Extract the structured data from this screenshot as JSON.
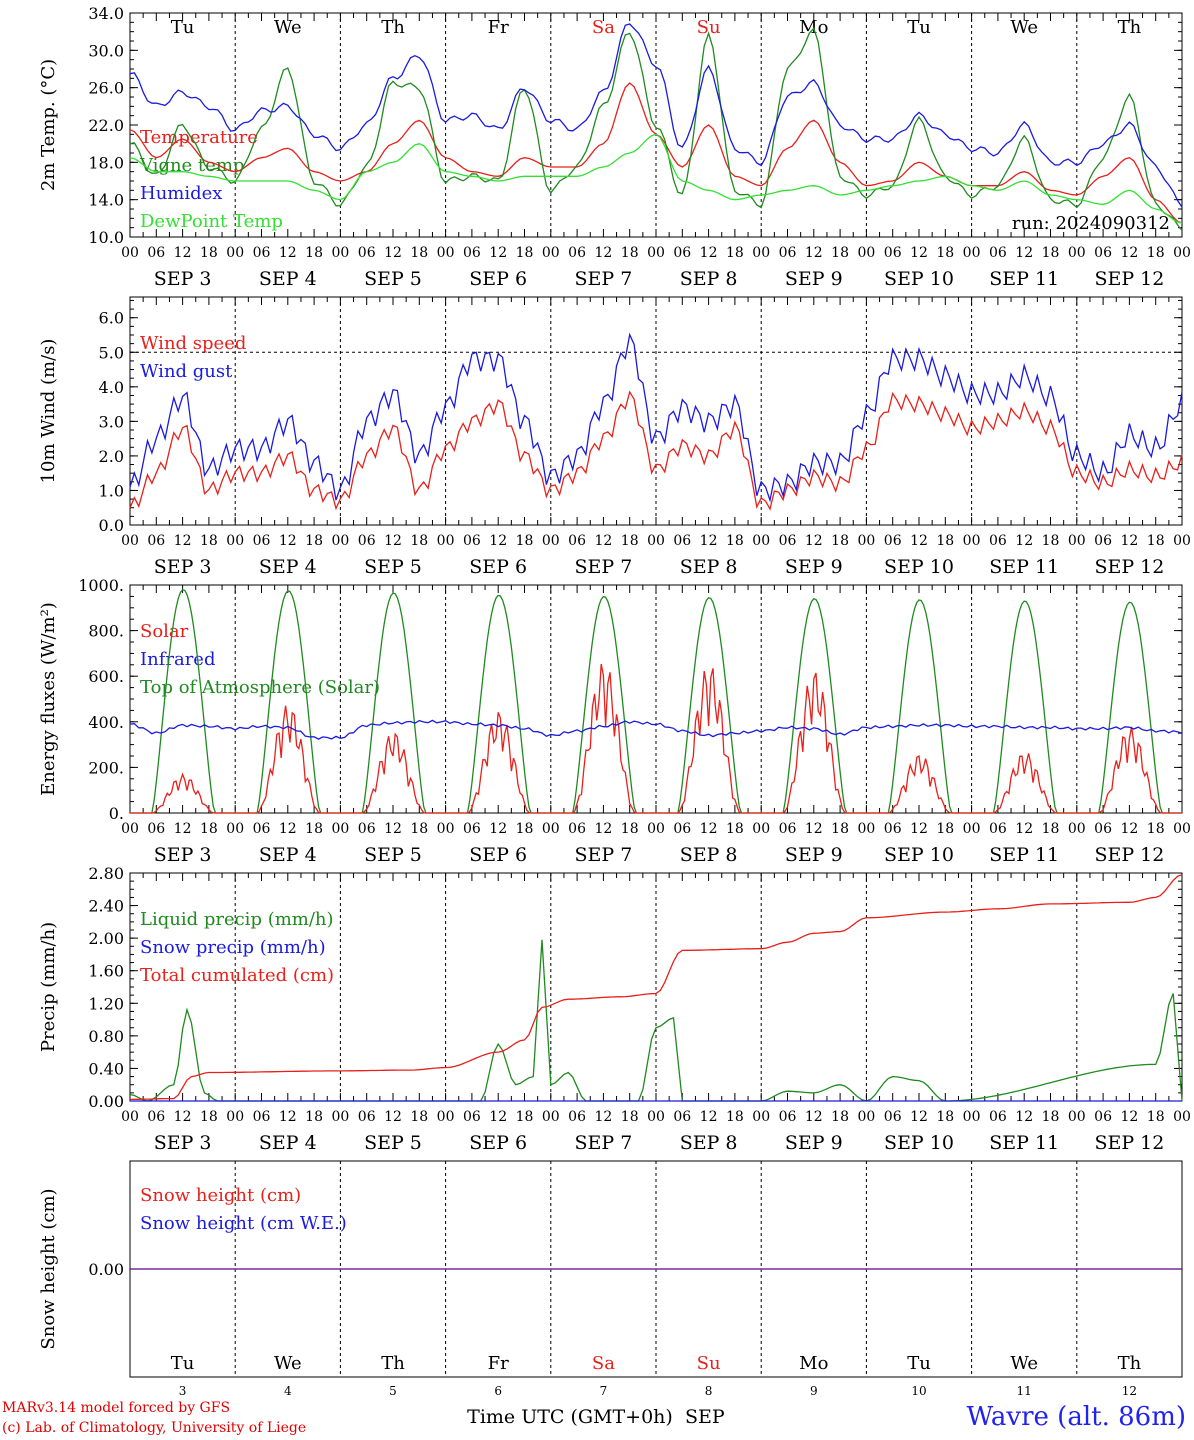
{
  "station": "Wavre (alt. 86m)",
  "credits": [
    "MARv3.14 model forced by GFS",
    "(c) Lab. of Climatology, University of Liege"
  ],
  "run_label": "run: 2024090312",
  "days": [
    {
      "dow": "Tu",
      "date": "SEP  3",
      "num": "3",
      "weekend": false
    },
    {
      "dow": "We",
      "date": "SEP  4",
      "num": "4",
      "weekend": false
    },
    {
      "dow": "Th",
      "date": "SEP  5",
      "num": "5",
      "weekend": false
    },
    {
      "dow": "Fr",
      "date": "SEP  6",
      "num": "6",
      "weekend": false
    },
    {
      "dow": "Sa",
      "date": "SEP  7",
      "num": "7",
      "weekend": true
    },
    {
      "dow": "Su",
      "date": "SEP  8",
      "num": "8",
      "weekend": true
    },
    {
      "dow": "Mo",
      "date": "SEP  9",
      "num": "9",
      "weekend": false
    },
    {
      "dow": "Tu",
      "date": "SEP 10",
      "num": "10",
      "weekend": false
    },
    {
      "dow": "We",
      "date": "SEP 11",
      "num": "11",
      "weekend": false
    },
    {
      "dow": "Th",
      "date": "SEP 12",
      "num": "12",
      "weekend": false
    }
  ],
  "hour_ticks": [
    "00",
    "06",
    "12",
    "18"
  ],
  "end_tick": "00",
  "xlabel": "Time UTC (GMT+0h)",
  "xlabel_month": "SEP",
  "colors": {
    "red": "#e8201a",
    "green": "#1f8a1f",
    "blue": "#1a1ae0",
    "lightgreen": "#33e033",
    "weekend": "#e8201a",
    "axis": "#000000"
  },
  "chart_data": [
    {
      "type": "line",
      "ylabel": "2m Temp. (°C)",
      "ylim": [
        10,
        34
      ],
      "yticks": [
        "10.0",
        "14.0",
        "18.0",
        "22.0",
        "26.0",
        "30.0",
        "34.0"
      ],
      "x_hours": [
        0,
        6,
        12,
        18,
        24,
        30,
        36,
        42,
        48,
        54,
        60,
        66,
        72,
        78,
        84,
        90,
        96,
        102,
        108,
        114,
        120,
        126,
        132,
        138,
        144,
        150,
        156,
        162,
        168,
        174,
        180,
        186,
        192,
        198,
        204,
        210,
        216,
        222,
        228,
        234,
        240
      ],
      "series": [
        {
          "name": "Temperature",
          "color": "#e8201a",
          "values": [
            21.5,
            18.5,
            20.5,
            18.0,
            17.0,
            18.5,
            19.5,
            17.0,
            16.0,
            17.0,
            20.0,
            22.5,
            18.5,
            17.0,
            16.5,
            18.5,
            17.5,
            17.5,
            20.0,
            26.5,
            21.0,
            17.5,
            22.0,
            16.5,
            15.5,
            19.5,
            22.5,
            18.0,
            15.5,
            16.0,
            18.0,
            16.5,
            15.5,
            15.5,
            17.0,
            15.0,
            14.5,
            16.5,
            18.5,
            14.0,
            11.5
          ]
        },
        {
          "name": "Vigne temp",
          "color": "#1f8a1f",
          "values": [
            20.0,
            16.5,
            22.0,
            17.5,
            16.0,
            21.5,
            28.0,
            16.0,
            13.5,
            17.5,
            26.5,
            26.0,
            16.0,
            16.5,
            16.0,
            26.0,
            15.0,
            17.5,
            24.0,
            32.0,
            22.0,
            14.5,
            31.5,
            15.0,
            13.5,
            28.0,
            32.0,
            16.5,
            14.5,
            15.5,
            22.5,
            16.5,
            14.5,
            15.5,
            20.5,
            14.0,
            13.5,
            18.5,
            25.0,
            13.5,
            11.0
          ]
        },
        {
          "name": "Humidex",
          "color": "#1a1ae0",
          "values": [
            27.5,
            24.0,
            25.5,
            24.0,
            21.5,
            23.5,
            24.0,
            21.0,
            19.5,
            22.0,
            27.0,
            29.5,
            22.5,
            23.0,
            21.5,
            26.0,
            22.5,
            21.5,
            25.5,
            33.0,
            28.5,
            19.5,
            28.0,
            19.5,
            18.0,
            25.0,
            26.5,
            22.0,
            20.5,
            20.5,
            23.0,
            21.0,
            19.5,
            19.0,
            22.0,
            18.0,
            18.0,
            20.0,
            22.0,
            17.5,
            13.5
          ]
        },
        {
          "name": "DewPoint Temp",
          "color": "#33e033",
          "values": [
            18.5,
            17.0,
            17.0,
            16.5,
            16.0,
            16.0,
            16.0,
            15.0,
            14.0,
            17.0,
            18.0,
            20.0,
            17.0,
            16.5,
            16.0,
            16.5,
            16.5,
            16.5,
            17.5,
            19.0,
            21.0,
            16.0,
            15.0,
            14.0,
            14.5,
            15.0,
            15.5,
            14.5,
            15.0,
            15.5,
            16.0,
            16.5,
            15.5,
            15.0,
            16.0,
            14.5,
            14.0,
            13.5,
            15.0,
            13.0,
            11.5
          ]
        }
      ]
    },
    {
      "type": "line",
      "ylabel": "10m Wind (m/s)",
      "ylim": [
        0,
        6.6
      ],
      "yticks": [
        "0.0",
        "1.0",
        "2.0",
        "3.0",
        "4.0",
        "5.0",
        "6.0"
      ],
      "ref_line": 5.0,
      "x_hours": [
        0,
        6,
        12,
        18,
        24,
        30,
        36,
        42,
        48,
        54,
        60,
        66,
        72,
        78,
        84,
        90,
        96,
        102,
        108,
        114,
        120,
        126,
        132,
        138,
        144,
        150,
        156,
        162,
        168,
        174,
        180,
        186,
        192,
        198,
        204,
        210,
        216,
        222,
        228,
        234,
        240
      ],
      "series": [
        {
          "name": "Wind speed",
          "color": "#e8201a",
          "values": [
            0.5,
            1.5,
            2.8,
            1.0,
            1.5,
            1.5,
            2.0,
            1.0,
            0.7,
            2.0,
            2.8,
            1.0,
            2.2,
            3.0,
            3.5,
            2.0,
            1.0,
            1.5,
            2.5,
            3.7,
            1.6,
            2.3,
            2.0,
            2.8,
            0.6,
            1.0,
            1.4,
            1.2,
            2.2,
            3.6,
            3.5,
            3.2,
            2.8,
            3.0,
            3.3,
            2.8,
            1.5,
            1.2,
            1.6,
            1.4,
            1.8
          ]
        },
        {
          "name": "Wind gust",
          "color": "#1a1ae0",
          "values": [
            1.1,
            2.5,
            3.7,
            1.6,
            2.2,
            2.2,
            3.0,
            1.8,
            1.0,
            3.0,
            3.8,
            2.0,
            3.4,
            4.8,
            4.8,
            3.0,
            1.4,
            2.0,
            3.5,
            5.3,
            2.5,
            3.4,
            3.0,
            3.5,
            1.0,
            1.2,
            1.8,
            1.8,
            3.2,
            4.8,
            4.8,
            4.3,
            3.8,
            3.8,
            4.3,
            3.7,
            2.0,
            1.5,
            2.6,
            2.2,
            3.5
          ]
        }
      ]
    },
    {
      "type": "line",
      "ylabel": "Energy fluxes (W/m²)",
      "ylim": [
        0,
        1000
      ],
      "yticks": [
        "0.",
        "200.",
        "400.",
        "600.",
        "800.",
        "1000."
      ],
      "series": [
        {
          "name": "Solar",
          "color": "#e8201a",
          "daily_peak": [
            170,
            480,
            360,
            450,
            670,
            660,
            630,
            260,
            270,
            380
          ]
        },
        {
          "name": "Infrared",
          "color": "#1a1ae0",
          "values": [
            390,
            350,
            385,
            380,
            370,
            380,
            375,
            330,
            330,
            385,
            395,
            400,
            400,
            390,
            385,
            370,
            340,
            360,
            380,
            400,
            390,
            360,
            340,
            350,
            360,
            375,
            370,
            345,
            375,
            380,
            385,
            385,
            380,
            380,
            375,
            375,
            370,
            370,
            375,
            360,
            355
          ]
        },
        {
          "name": "Top of Atmosphere (Solar)",
          "color": "#1f8a1f",
          "daily_peak": [
            980,
            975,
            965,
            955,
            950,
            945,
            940,
            935,
            930,
            925
          ]
        }
      ]
    },
    {
      "type": "line",
      "ylabel": "Precip (mm/h)",
      "ylim": [
        0,
        2.8
      ],
      "yticks": [
        "0.00",
        "0.40",
        "0.80",
        "1.20",
        "1.60",
        "2.00",
        "2.40",
        "2.80"
      ],
      "series": [
        {
          "name": "Liquid precip (mm/h)",
          "color": "#1f8a1f",
          "points": [
            [
              0,
              0.08
            ],
            [
              4,
              0.0
            ],
            [
              10,
              0.2
            ],
            [
              13,
              1.12
            ],
            [
              17,
              0.1
            ],
            [
              20,
              0.0
            ],
            [
              80,
              0.0
            ],
            [
              84,
              0.7
            ],
            [
              88,
              0.2
            ],
            [
              92,
              0.3
            ],
            [
              94,
              1.98
            ],
            [
              96,
              0.2
            ],
            [
              100,
              0.35
            ],
            [
              104,
              0.0
            ],
            [
              116,
              0.0
            ],
            [
              120,
              0.9
            ],
            [
              124,
              1.02
            ],
            [
              126,
              0.0
            ],
            [
              144,
              0.0
            ],
            [
              150,
              0.12
            ],
            [
              156,
              0.1
            ],
            [
              162,
              0.2
            ],
            [
              168,
              0.0
            ],
            [
              174,
              0.3
            ],
            [
              180,
              0.25
            ],
            [
              186,
              0.0
            ],
            [
              240,
              0.0
            ],
            [
              234,
              0.45
            ],
            [
              238,
              1.32
            ],
            [
              240,
              0.25
            ]
          ]
        },
        {
          "name": "Snow precip (mm/h)",
          "color": "#1a1ae0",
          "points": [
            [
              0,
              0.0
            ],
            [
              240,
              0.0
            ]
          ]
        },
        {
          "name": "Total cumulated (cm)",
          "color": "#e8201a",
          "points": [
            [
              0,
              0.02
            ],
            [
              10,
              0.03
            ],
            [
              14,
              0.3
            ],
            [
              18,
              0.35
            ],
            [
              48,
              0.37
            ],
            [
              64,
              0.38
            ],
            [
              72,
              0.41
            ],
            [
              84,
              0.6
            ],
            [
              90,
              0.75
            ],
            [
              94,
              1.15
            ],
            [
              100,
              1.25
            ],
            [
              112,
              1.28
            ],
            [
              120,
              1.32
            ],
            [
              126,
              1.85
            ],
            [
              144,
              1.87
            ],
            [
              150,
              1.95
            ],
            [
              156,
              2.06
            ],
            [
              162,
              2.08
            ],
            [
              168,
              2.25
            ],
            [
              186,
              2.32
            ],
            [
              198,
              2.36
            ],
            [
              210,
              2.42
            ],
            [
              228,
              2.44
            ],
            [
              234,
              2.5
            ],
            [
              240,
              2.78
            ]
          ]
        }
      ]
    },
    {
      "type": "line",
      "ylabel": "Snow height (cm)",
      "ylim": [
        -1,
        1
      ],
      "yticks": [
        "0.00"
      ],
      "series": [
        {
          "name": "Snow height (cm)",
          "color": "#e8201a",
          "values": [
            0,
            0
          ]
        },
        {
          "name": "Snow height (cm W.E.)",
          "color": "#1a1ae0",
          "values": [
            0,
            0
          ]
        }
      ]
    }
  ]
}
